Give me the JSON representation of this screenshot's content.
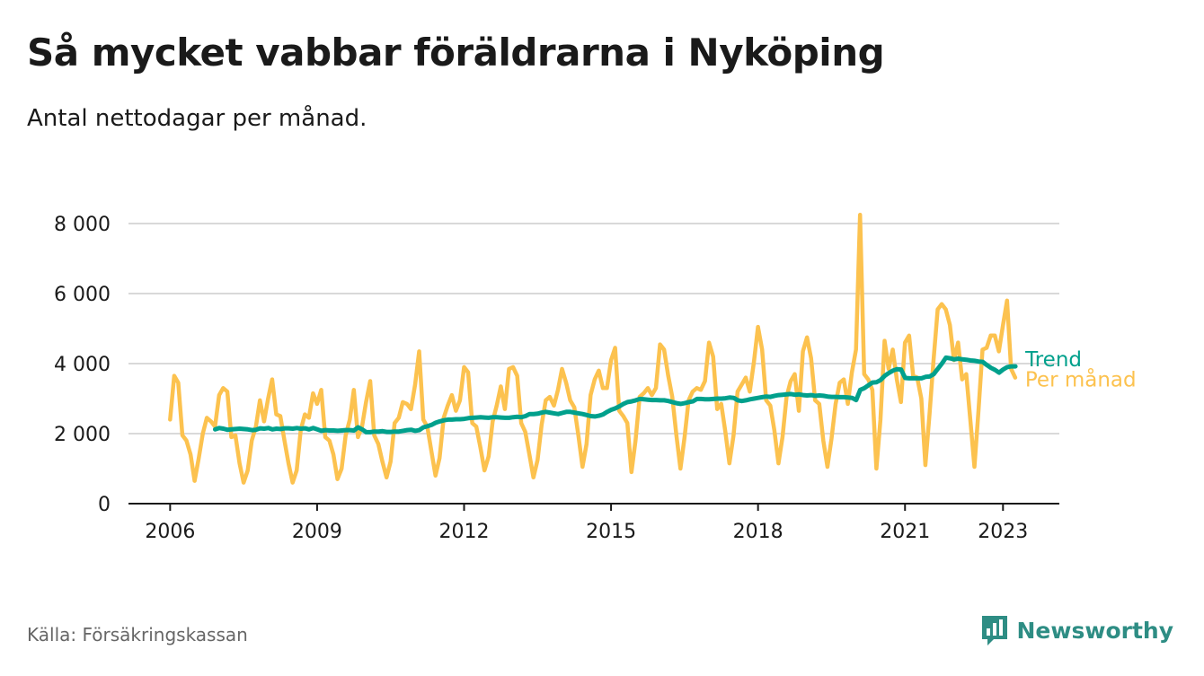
{
  "title": "Så mycket vabbar föräldrarna i Nyköping",
  "subtitle": "Antal nettodagar per månad.",
  "source": "Källa: Försäkringskassan",
  "brand": {
    "name": "Newsworthy",
    "icon": "newsworthy-logo-icon"
  },
  "colors": {
    "monthly": "#fcc24f",
    "trend": "#00a08c",
    "grid": "#d9d9d9",
    "axis": "#1a1a1a",
    "brand": "#2e8d84"
  },
  "chart_data": {
    "type": "line",
    "title": "Så mycket vabbar föräldrarna i Nyköping",
    "subtitle": "Antal nettodagar per månad.",
    "xlabel": "",
    "ylabel": "",
    "x_unit": "year (decimal, monthly points)",
    "xlim": [
      2005.15,
      2024.15
    ],
    "ylim": [
      0,
      8000
    ],
    "yticks": [
      0,
      2000,
      4000,
      6000,
      8000
    ],
    "ytick_labels": [
      "0",
      "2 000",
      "4 000",
      "6 000",
      "8 000"
    ],
    "xticks": [
      2006,
      2009,
      2012,
      2015,
      2018,
      2021,
      2023
    ],
    "xtick_labels": [
      "2006",
      "2009",
      "2012",
      "2015",
      "2018",
      "2021",
      "2023"
    ],
    "grid": true,
    "legend": "direct labels at line ends (right)",
    "series": [
      {
        "name": "Per månad",
        "color": "#fcc24f",
        "x_start": 2006.0,
        "x_step": 0.08333,
        "values": [
          2400,
          3650,
          3450,
          1950,
          1800,
          1400,
          650,
          1300,
          2000,
          2450,
          2350,
          2200,
          3100,
          3300,
          3200,
          1900,
          1950,
          1150,
          600,
          950,
          1800,
          2200,
          2950,
          2350,
          3000,
          3550,
          2550,
          2500,
          1800,
          1150,
          600,
          950,
          2100,
          2550,
          2450,
          3150,
          2850,
          3250,
          1900,
          1800,
          1400,
          700,
          1000,
          1950,
          2400,
          3250,
          1900,
          2200,
          2900,
          3500,
          1950,
          1700,
          1200,
          750,
          1200,
          2300,
          2450,
          2900,
          2850,
          2700,
          3400,
          4350,
          2400,
          2200,
          1500,
          800,
          1300,
          2450,
          2800,
          3100,
          2650,
          2950,
          3900,
          3750,
          2300,
          2200,
          1600,
          950,
          1350,
          2350,
          2800,
          3350,
          2700,
          3850,
          3900,
          3650,
          2300,
          2050,
          1400,
          750,
          1250,
          2250,
          2950,
          3050,
          2800,
          3250,
          3850,
          3450,
          2950,
          2750,
          1950,
          1050,
          1700,
          3100,
          3550,
          3800,
          3300,
          3300,
          4100,
          4450,
          2650,
          2500,
          2300,
          900,
          1800,
          3050,
          3150,
          3300,
          3100,
          3300,
          4550,
          4400,
          3650,
          3050,
          1950,
          1000,
          1900,
          2950,
          3200,
          3300,
          3250,
          3500,
          4600,
          4200,
          2700,
          2850,
          2050,
          1150,
          1950,
          3200,
          3400,
          3600,
          3200,
          4050,
          5050,
          4400,
          2950,
          2800,
          2100,
          1150,
          1900,
          3050,
          3500,
          3700,
          2650,
          4350,
          4750,
          4150,
          2950,
          2850,
          1800,
          1050,
          1850,
          2850,
          3450,
          3550,
          2850,
          3750,
          4400,
          8250,
          3700,
          3550,
          3250,
          1000,
          2400,
          4650,
          3850,
          4400,
          3550,
          2900,
          4600,
          4800,
          3650,
          3600,
          3000,
          1100,
          2550,
          4100,
          5550,
          5700,
          5550,
          5100,
          4100,
          4600,
          3550,
          3700,
          2400,
          1050,
          2650,
          4400,
          4450,
          4800,
          4800,
          4350,
          5100,
          5800,
          3850,
          3600
        ]
      },
      {
        "name": "Trend",
        "color": "#00a08c",
        "x_start": 2006.92,
        "x_step": 0.08333,
        "values": [
          2120,
          2160,
          2140,
          2110,
          2120,
          2130,
          2140,
          2130,
          2120,
          2100,
          2110,
          2150,
          2140,
          2160,
          2120,
          2140,
          2130,
          2150,
          2150,
          2140,
          2160,
          2140,
          2150,
          2120,
          2160,
          2120,
          2080,
          2100,
          2090,
          2090,
          2080,
          2090,
          2100,
          2100,
          2090,
          2180,
          2120,
          2040,
          2040,
          2060,
          2060,
          2070,
          2050,
          2050,
          2060,
          2060,
          2080,
          2100,
          2110,
          2080,
          2100,
          2180,
          2210,
          2250,
          2310,
          2350,
          2380,
          2400,
          2400,
          2410,
          2410,
          2420,
          2440,
          2450,
          2460,
          2470,
          2460,
          2450,
          2470,
          2470,
          2460,
          2450,
          2450,
          2470,
          2480,
          2470,
          2500,
          2560,
          2560,
          2570,
          2600,
          2620,
          2600,
          2580,
          2560,
          2590,
          2620,
          2620,
          2600,
          2580,
          2560,
          2530,
          2500,
          2490,
          2510,
          2550,
          2620,
          2680,
          2720,
          2780,
          2850,
          2900,
          2920,
          2950,
          2990,
          2980,
          2970,
          2960,
          2960,
          2950,
          2950,
          2930,
          2900,
          2870,
          2850,
          2870,
          2900,
          2920,
          2990,
          2990,
          2980,
          2980,
          2990,
          3000,
          3000,
          3010,
          3030,
          3020,
          2950,
          2930,
          2950,
          2980,
          3000,
          3020,
          3040,
          3060,
          3050,
          3080,
          3100,
          3110,
          3120,
          3130,
          3110,
          3120,
          3100,
          3090,
          3100,
          3080,
          3090,
          3080,
          3060,
          3050,
          3050,
          3040,
          3040,
          3030,
          3020,
          2960,
          3250,
          3300,
          3380,
          3460,
          3470,
          3530,
          3650,
          3730,
          3800,
          3840,
          3830,
          3590,
          3580,
          3580,
          3580,
          3580,
          3620,
          3630,
          3700,
          3850,
          4000,
          4170,
          4150,
          4120,
          4140,
          4120,
          4110,
          4090,
          4080,
          4060,
          4050,
          3960,
          3880,
          3820,
          3740,
          3830,
          3900,
          3920,
          3920
        ]
      }
    ]
  }
}
